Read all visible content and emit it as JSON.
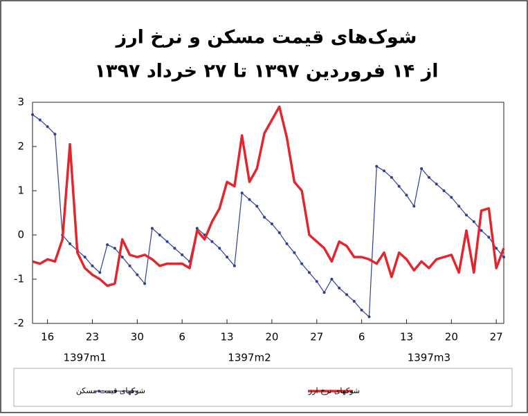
{
  "chart_data": {
    "type": "line",
    "title": "شوک‌های قیمت مسکن و نرخ ارز",
    "subtitle": "از ۱۴ فروردین ۱۳۹۷ تا ۲۷ خرداد ۱۳۹۷",
    "categories": [
      null,
      null,
      "16",
      null,
      null,
      null,
      null,
      null,
      "23",
      null,
      null,
      null,
      null,
      null,
      "30",
      null,
      null,
      null,
      null,
      null,
      "6",
      null,
      null,
      null,
      null,
      null,
      "13",
      null,
      null,
      null,
      null,
      null,
      "20",
      null,
      null,
      null,
      null,
      null,
      "27",
      null,
      null,
      null,
      null,
      null,
      "6",
      null,
      null,
      null,
      null,
      null,
      "13",
      null,
      null,
      null,
      null,
      null,
      "20",
      null,
      null,
      null,
      null,
      null,
      "27",
      null
    ],
    "month_labels": [
      null,
      null,
      null,
      null,
      null,
      null,
      null,
      "1397m1",
      null,
      null,
      null,
      null,
      null,
      null,
      null,
      null,
      null,
      null,
      null,
      null,
      null,
      null,
      null,
      null,
      null,
      null,
      null,
      null,
      null,
      "1397m2",
      null,
      null,
      null,
      null,
      null,
      null,
      null,
      null,
      null,
      null,
      null,
      null,
      null,
      null,
      null,
      null,
      null,
      null,
      null,
      null,
      null,
      null,
      null,
      "1397m3",
      null,
      null,
      null,
      null,
      null,
      null,
      null,
      null,
      null,
      null
    ],
    "series": [
      {
        "name": "شوکهای قیمت مسکن",
        "color": "#2e3d96",
        "markers": true,
        "values": [
          2.72,
          2.6,
          2.45,
          2.28,
          0.0,
          -0.2,
          -0.35,
          -0.5,
          -0.7,
          -0.85,
          -0.22,
          -0.3,
          -0.5,
          -0.7,
          -0.9,
          -1.1,
          0.15,
          0.0,
          -0.15,
          -0.3,
          -0.45,
          -0.6,
          0.15,
          0.0,
          -0.15,
          -0.3,
          -0.5,
          -0.7,
          0.95,
          0.8,
          0.65,
          0.4,
          0.25,
          0.05,
          -0.2,
          -0.4,
          -0.65,
          -0.85,
          -1.05,
          -1.3,
          -1.0,
          -1.2,
          -1.35,
          -1.5,
          -1.7,
          -1.85,
          1.55,
          1.45,
          1.3,
          1.1,
          0.9,
          0.65,
          1.5,
          1.3,
          1.15,
          1.0,
          0.85,
          0.65,
          0.45,
          0.3,
          0.1,
          -0.05,
          -0.3,
          -0.5
        ]
      },
      {
        "name": "شوکهای نرخ ارز",
        "color": "#e2262b",
        "markers": false,
        "values": [
          -0.6,
          -0.65,
          -0.55,
          -0.6,
          -0.1,
          2.05,
          -0.4,
          -0.75,
          -0.9,
          -1.0,
          -1.15,
          -1.1,
          -0.1,
          -0.45,
          -0.5,
          -0.45,
          -0.55,
          -0.7,
          -0.65,
          -0.65,
          -0.65,
          -0.75,
          0.1,
          -0.1,
          0.3,
          0.6,
          1.2,
          1.1,
          2.25,
          1.2,
          1.5,
          2.3,
          2.6,
          2.9,
          2.2,
          1.2,
          1.0,
          0.0,
          -0.15,
          -0.3,
          -0.6,
          -0.15,
          -0.25,
          -0.5,
          -0.5,
          -0.55,
          -0.65,
          -0.4,
          -0.95,
          -0.4,
          -0.55,
          -0.8,
          -0.6,
          -0.75,
          -0.55,
          -0.5,
          -0.45,
          -0.85,
          0.1,
          -0.85,
          0.55,
          0.6,
          -0.75,
          -0.3
        ]
      }
    ],
    "ylim": [
      -2,
      3
    ],
    "yticks": [
      -2,
      -1,
      0,
      1,
      2,
      3
    ],
    "grid": false
  }
}
